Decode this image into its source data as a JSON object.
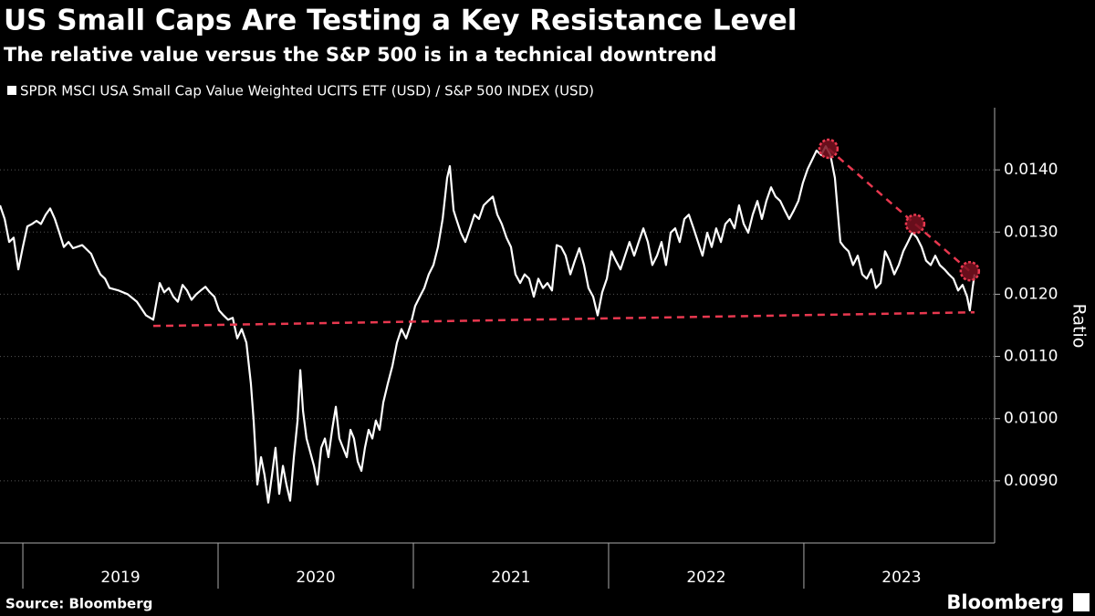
{
  "chart_data": {
    "type": "line",
    "title": "US Small Caps Are Testing a Key Resistance Level",
    "subtitle": "The relative value versus the S&P 500 is in a technical downtrend",
    "y_label": "Ratio",
    "source": "Source: Bloomberg",
    "brand": "Bloomberg",
    "grid": true,
    "xlim": [
      2018.883,
      2023.977
    ],
    "xticks": [
      2019,
      2020,
      2021,
      2022,
      2023
    ],
    "ylim": [
      0.008,
      0.015
    ],
    "yticks": [
      {
        "value": 0.009,
        "label": "0.0090"
      },
      {
        "value": 0.01,
        "label": "0.0100"
      },
      {
        "value": 0.011,
        "label": "0.0110"
      },
      {
        "value": 0.012,
        "label": "0.0120"
      },
      {
        "value": 0.013,
        "label": "0.0130"
      },
      {
        "value": 0.014,
        "label": "0.0140"
      }
    ],
    "x": [
      2018.883,
      2018.907,
      2018.93,
      2018.953,
      2018.977,
      2019.0,
      2019.023,
      2019.047,
      2019.07,
      2019.093,
      2019.117,
      2019.14,
      2019.164,
      2019.187,
      2019.21,
      2019.234,
      2019.257,
      2019.304,
      2019.35,
      2019.374,
      2019.397,
      2019.421,
      2019.444,
      2019.491,
      2019.537,
      2019.584,
      2019.631,
      2019.668,
      2019.701,
      2019.724,
      2019.748,
      2019.771,
      2019.794,
      2019.818,
      2019.841,
      2019.864,
      2019.888,
      2019.911,
      2019.935,
      2019.958,
      2019.981,
      2020.005,
      2020.028,
      2020.051,
      2020.075,
      2020.098,
      2020.121,
      2020.145,
      2020.168,
      2020.182,
      2020.201,
      2020.22,
      2020.238,
      2020.257,
      2020.276,
      2020.294,
      2020.313,
      2020.332,
      2020.35,
      2020.369,
      2020.388,
      2020.407,
      2020.421,
      2020.435,
      2020.453,
      2020.472,
      2020.491,
      2020.509,
      2020.528,
      2020.547,
      2020.565,
      2020.584,
      2020.603,
      2020.621,
      2020.64,
      2020.659,
      2020.678,
      2020.696,
      2020.715,
      2020.734,
      2020.752,
      2020.771,
      2020.79,
      2020.808,
      2020.827,
      2020.846,
      2020.869,
      2020.893,
      2020.916,
      2020.939,
      2020.963,
      2020.986,
      2021.009,
      2021.033,
      2021.056,
      2021.079,
      2021.103,
      2021.126,
      2021.15,
      2021.173,
      2021.187,
      2021.206,
      2021.22,
      2021.243,
      2021.266,
      2021.29,
      2021.313,
      2021.336,
      2021.36,
      2021.383,
      2021.407,
      2021.43,
      2021.453,
      2021.477,
      2021.5,
      2021.523,
      2021.547,
      2021.57,
      2021.593,
      2021.617,
      2021.64,
      2021.664,
      2021.687,
      2021.71,
      2021.734,
      2021.757,
      2021.78,
      2021.804,
      2021.827,
      2021.85,
      2021.874,
      2021.897,
      2021.921,
      2021.944,
      2021.967,
      2021.991,
      2022.014,
      2022.037,
      2022.061,
      2022.084,
      2022.107,
      2022.131,
      2022.154,
      2022.178,
      2022.201,
      2022.224,
      2022.248,
      2022.271,
      2022.294,
      2022.318,
      2022.341,
      2022.364,
      2022.388,
      2022.411,
      2022.435,
      2022.458,
      2022.481,
      2022.505,
      2022.528,
      2022.551,
      2022.575,
      2022.598,
      2022.621,
      2022.645,
      2022.668,
      2022.692,
      2022.715,
      2022.738,
      2022.762,
      2022.785,
      2022.808,
      2022.832,
      2022.855,
      2022.879,
      2022.902,
      2022.925,
      2022.949,
      2022.972,
      2022.995,
      2023.019,
      2023.042,
      2023.065,
      2023.089,
      2023.112,
      2023.136,
      2023.159,
      2023.173,
      2023.187,
      2023.206,
      2023.229,
      2023.252,
      2023.276,
      2023.299,
      2023.322,
      2023.346,
      2023.369,
      2023.393,
      2023.416,
      2023.439,
      2023.463,
      2023.486,
      2023.509,
      2023.533,
      2023.556,
      2023.579,
      2023.603,
      2023.626,
      2023.65,
      2023.673,
      2023.696,
      2023.72,
      2023.743,
      2023.766,
      2023.79,
      2023.813,
      2023.836,
      2023.85,
      2023.864,
      2023.874
    ],
    "series": [
      {
        "name": "SPDR MSCI USA Small Cap Value Weighted UCITS ETF (USD) / S&P 500 INDEX (USD)",
        "color": "#ffffff",
        "values": [
          0.01343,
          0.01321,
          0.01284,
          0.01291,
          0.0124,
          0.01276,
          0.01309,
          0.01313,
          0.01318,
          0.01313,
          0.01328,
          0.01338,
          0.01321,
          0.01299,
          0.01276,
          0.01284,
          0.01274,
          0.01279,
          0.01265,
          0.01247,
          0.01232,
          0.01225,
          0.0121,
          0.01206,
          0.012,
          0.01188,
          0.01166,
          0.01159,
          0.01218,
          0.01203,
          0.0121,
          0.01196,
          0.01188,
          0.01215,
          0.01206,
          0.01191,
          0.012,
          0.01206,
          0.01212,
          0.01203,
          0.01196,
          0.01174,
          0.01166,
          0.01159,
          0.01162,
          0.01129,
          0.01144,
          0.01122,
          0.01056,
          0.00997,
          0.00894,
          0.00938,
          0.00909,
          0.00865,
          0.00909,
          0.00953,
          0.00879,
          0.00924,
          0.00894,
          0.00868,
          0.00938,
          0.00997,
          0.01078,
          0.01012,
          0.00968,
          0.00946,
          0.00924,
          0.00894,
          0.00953,
          0.00968,
          0.00938,
          0.00982,
          0.01019,
          0.00968,
          0.00953,
          0.00938,
          0.00982,
          0.00968,
          0.00931,
          0.00916,
          0.00953,
          0.00982,
          0.00968,
          0.00997,
          0.00982,
          0.01026,
          0.01056,
          0.01085,
          0.01122,
          0.01144,
          0.01129,
          0.01151,
          0.01181,
          0.01196,
          0.0121,
          0.01232,
          0.01247,
          0.01276,
          0.01321,
          0.01387,
          0.01406,
          0.01335,
          0.01321,
          0.01299,
          0.01284,
          0.01306,
          0.01328,
          0.01321,
          0.01343,
          0.0135,
          0.01357,
          0.01328,
          0.01313,
          0.01291,
          0.01276,
          0.01232,
          0.01218,
          0.01232,
          0.01225,
          0.01196,
          0.01225,
          0.0121,
          0.01218,
          0.01206,
          0.01279,
          0.01276,
          0.01262,
          0.01232,
          0.01254,
          0.01274,
          0.01247,
          0.0121,
          0.01196,
          0.01166,
          0.01203,
          0.01225,
          0.01269,
          0.01254,
          0.0124,
          0.01262,
          0.01284,
          0.01262,
          0.01284,
          0.01306,
          0.01284,
          0.01247,
          0.01262,
          0.01284,
          0.01247,
          0.01299,
          0.01306,
          0.01284,
          0.01321,
          0.01328,
          0.01306,
          0.01284,
          0.01262,
          0.01299,
          0.01276,
          0.01306,
          0.01284,
          0.01313,
          0.01321,
          0.01306,
          0.01343,
          0.01313,
          0.01299,
          0.01328,
          0.0135,
          0.01321,
          0.0135,
          0.01372,
          0.01357,
          0.0135,
          0.01335,
          0.01321,
          0.01335,
          0.0135,
          0.01379,
          0.01401,
          0.01416,
          0.01431,
          0.01424,
          0.01438,
          0.01424,
          0.01387,
          0.01335,
          0.01284,
          0.01276,
          0.01269,
          0.01247,
          0.01262,
          0.01232,
          0.01225,
          0.0124,
          0.0121,
          0.01218,
          0.01269,
          0.01254,
          0.01232,
          0.01247,
          0.01269,
          0.01284,
          0.01299,
          0.01291,
          0.01276,
          0.01254,
          0.01247,
          0.01262,
          0.01247,
          0.0124,
          0.01232,
          0.01225,
          0.01206,
          0.01215,
          0.01196,
          0.01174,
          0.0121,
          0.01232
        ]
      }
    ],
    "trendlines": [
      {
        "color": "#e8384f",
        "x": [
          2019.668,
          2023.874
        ],
        "y": [
          0.01149,
          0.01171
        ]
      },
      {
        "color": "#e8384f",
        "x": [
          2023.126,
          2023.57,
          2023.85
        ],
        "y": [
          0.01434,
          0.01313,
          0.01237
        ]
      }
    ],
    "highlights": {
      "color": "#e8384f",
      "x": [
        2023.126,
        2023.57,
        2023.85
      ],
      "y": [
        0.01434,
        0.01313,
        0.01237
      ]
    }
  }
}
